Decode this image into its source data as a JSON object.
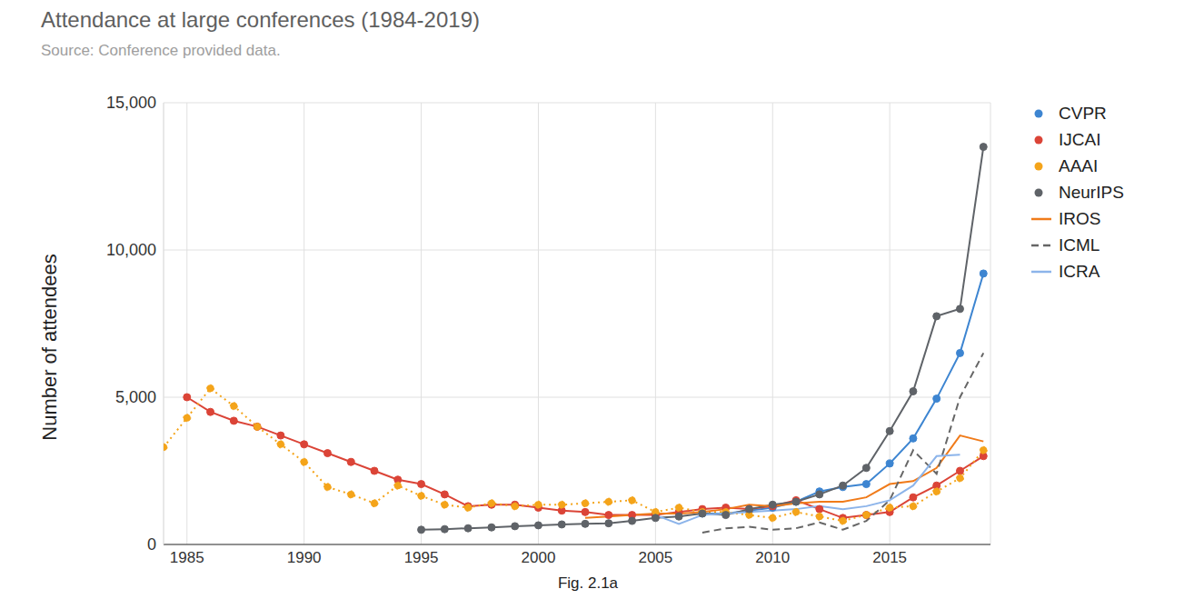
{
  "chart_data": {
    "type": "line",
    "title": "Attendance at large conferences (1984-2019)",
    "subtitle": "Source: Conference provided data.",
    "y_label": "Number of attendees",
    "caption": "Fig. 2.1a",
    "x": [
      1984,
      1985,
      1986,
      1987,
      1988,
      1989,
      1990,
      1991,
      1992,
      1993,
      1994,
      1995,
      1996,
      1997,
      1998,
      1999,
      2000,
      2001,
      2002,
      2003,
      2004,
      2005,
      2006,
      2007,
      2008,
      2009,
      2010,
      2011,
      2012,
      2013,
      2014,
      2015,
      2016,
      2017,
      2018,
      2019
    ],
    "xlim": [
      1984,
      2019.3
    ],
    "xticks": [
      1985,
      1990,
      1995,
      2000,
      2005,
      2010,
      2015
    ],
    "ylim": [
      0,
      15000
    ],
    "yticks": [
      0,
      {
        "value": 5000,
        "label": "5,000"
      },
      {
        "value": 10000,
        "label": "10,000"
      },
      {
        "value": 15000,
        "label": "15,000"
      }
    ],
    "grid": true,
    "legend": "right",
    "series": [
      {
        "name": "CVPR",
        "color": "#3d85d1",
        "marker": "circle",
        "line_style": "solid",
        "values": [
          null,
          null,
          null,
          null,
          null,
          null,
          null,
          null,
          null,
          null,
          null,
          null,
          null,
          null,
          null,
          null,
          null,
          null,
          null,
          null,
          null,
          null,
          null,
          1050,
          1050,
          1150,
          1250,
          1450,
          1800,
          1950,
          2050,
          2750,
          3600,
          4950,
          6500,
          9200
        ]
      },
      {
        "name": "IJCAI",
        "color": "#db4437",
        "marker": "circle",
        "line_style": "solid",
        "values": [
          null,
          5000,
          4500,
          4200,
          4000,
          3700,
          3400,
          3100,
          2800,
          2500,
          2200,
          2050,
          1700,
          1300,
          1350,
          1350,
          1250,
          1150,
          1100,
          1000,
          1000,
          1000,
          1100,
          1200,
          1250,
          1200,
          1300,
          1500,
          1200,
          900,
          1000,
          1100,
          1600,
          2000,
          2500,
          3000
        ]
      },
      {
        "name": "AAAI",
        "color": "#f4a41a",
        "marker": "circle",
        "line_style": "dotted",
        "values": [
          3300,
          4300,
          5300,
          4700,
          4000,
          3400,
          2800,
          1950,
          1700,
          1400,
          2000,
          1650,
          1350,
          1250,
          1400,
          1300,
          1350,
          1350,
          1400,
          1450,
          1500,
          1100,
          1250,
          1100,
          1100,
          1000,
          900,
          1100,
          950,
          800,
          1000,
          1250,
          1300,
          1800,
          2250,
          3200
        ]
      },
      {
        "name": "NeurIPS",
        "color": "#5f6368",
        "marker": "circle",
        "line_style": "solid",
        "values": [
          null,
          null,
          null,
          null,
          null,
          null,
          null,
          null,
          null,
          null,
          null,
          500,
          520,
          550,
          580,
          620,
          650,
          680,
          700,
          720,
          800,
          900,
          950,
          1050,
          1000,
          1200,
          1350,
          1450,
          1700,
          2000,
          2600,
          3850,
          5200,
          7750,
          8000,
          13500
        ]
      },
      {
        "name": "IROS",
        "color": "#f07b1a",
        "marker": "none",
        "line_style": "solid",
        "values": [
          null,
          null,
          null,
          null,
          null,
          null,
          null,
          null,
          null,
          null,
          null,
          null,
          null,
          null,
          null,
          null,
          null,
          null,
          900,
          950,
          1000,
          1050,
          1050,
          1100,
          1200,
          1350,
          1300,
          1400,
          1450,
          1450,
          1600,
          2050,
          2150,
          2600,
          3700,
          3500
        ]
      },
      {
        "name": "ICML",
        "color": "#666666",
        "marker": "none",
        "line_style": "dashed",
        "values": [
          null,
          null,
          null,
          null,
          null,
          null,
          null,
          null,
          null,
          null,
          null,
          null,
          null,
          null,
          null,
          null,
          null,
          null,
          null,
          null,
          null,
          null,
          null,
          400,
          550,
          600,
          500,
          550,
          750,
          500,
          800,
          1500,
          3200,
          2400,
          5000,
          6500
        ]
      },
      {
        "name": "ICRA",
        "color": "#8cb4ea",
        "marker": "none",
        "line_style": "solid",
        "values": [
          null,
          null,
          null,
          null,
          null,
          null,
          null,
          null,
          null,
          null,
          null,
          null,
          null,
          null,
          null,
          null,
          null,
          null,
          null,
          null,
          null,
          1000,
          700,
          1000,
          1050,
          1100,
          1150,
          1200,
          1300,
          1200,
          1300,
          1500,
          2000,
          3000,
          3050,
          null
        ]
      }
    ]
  }
}
